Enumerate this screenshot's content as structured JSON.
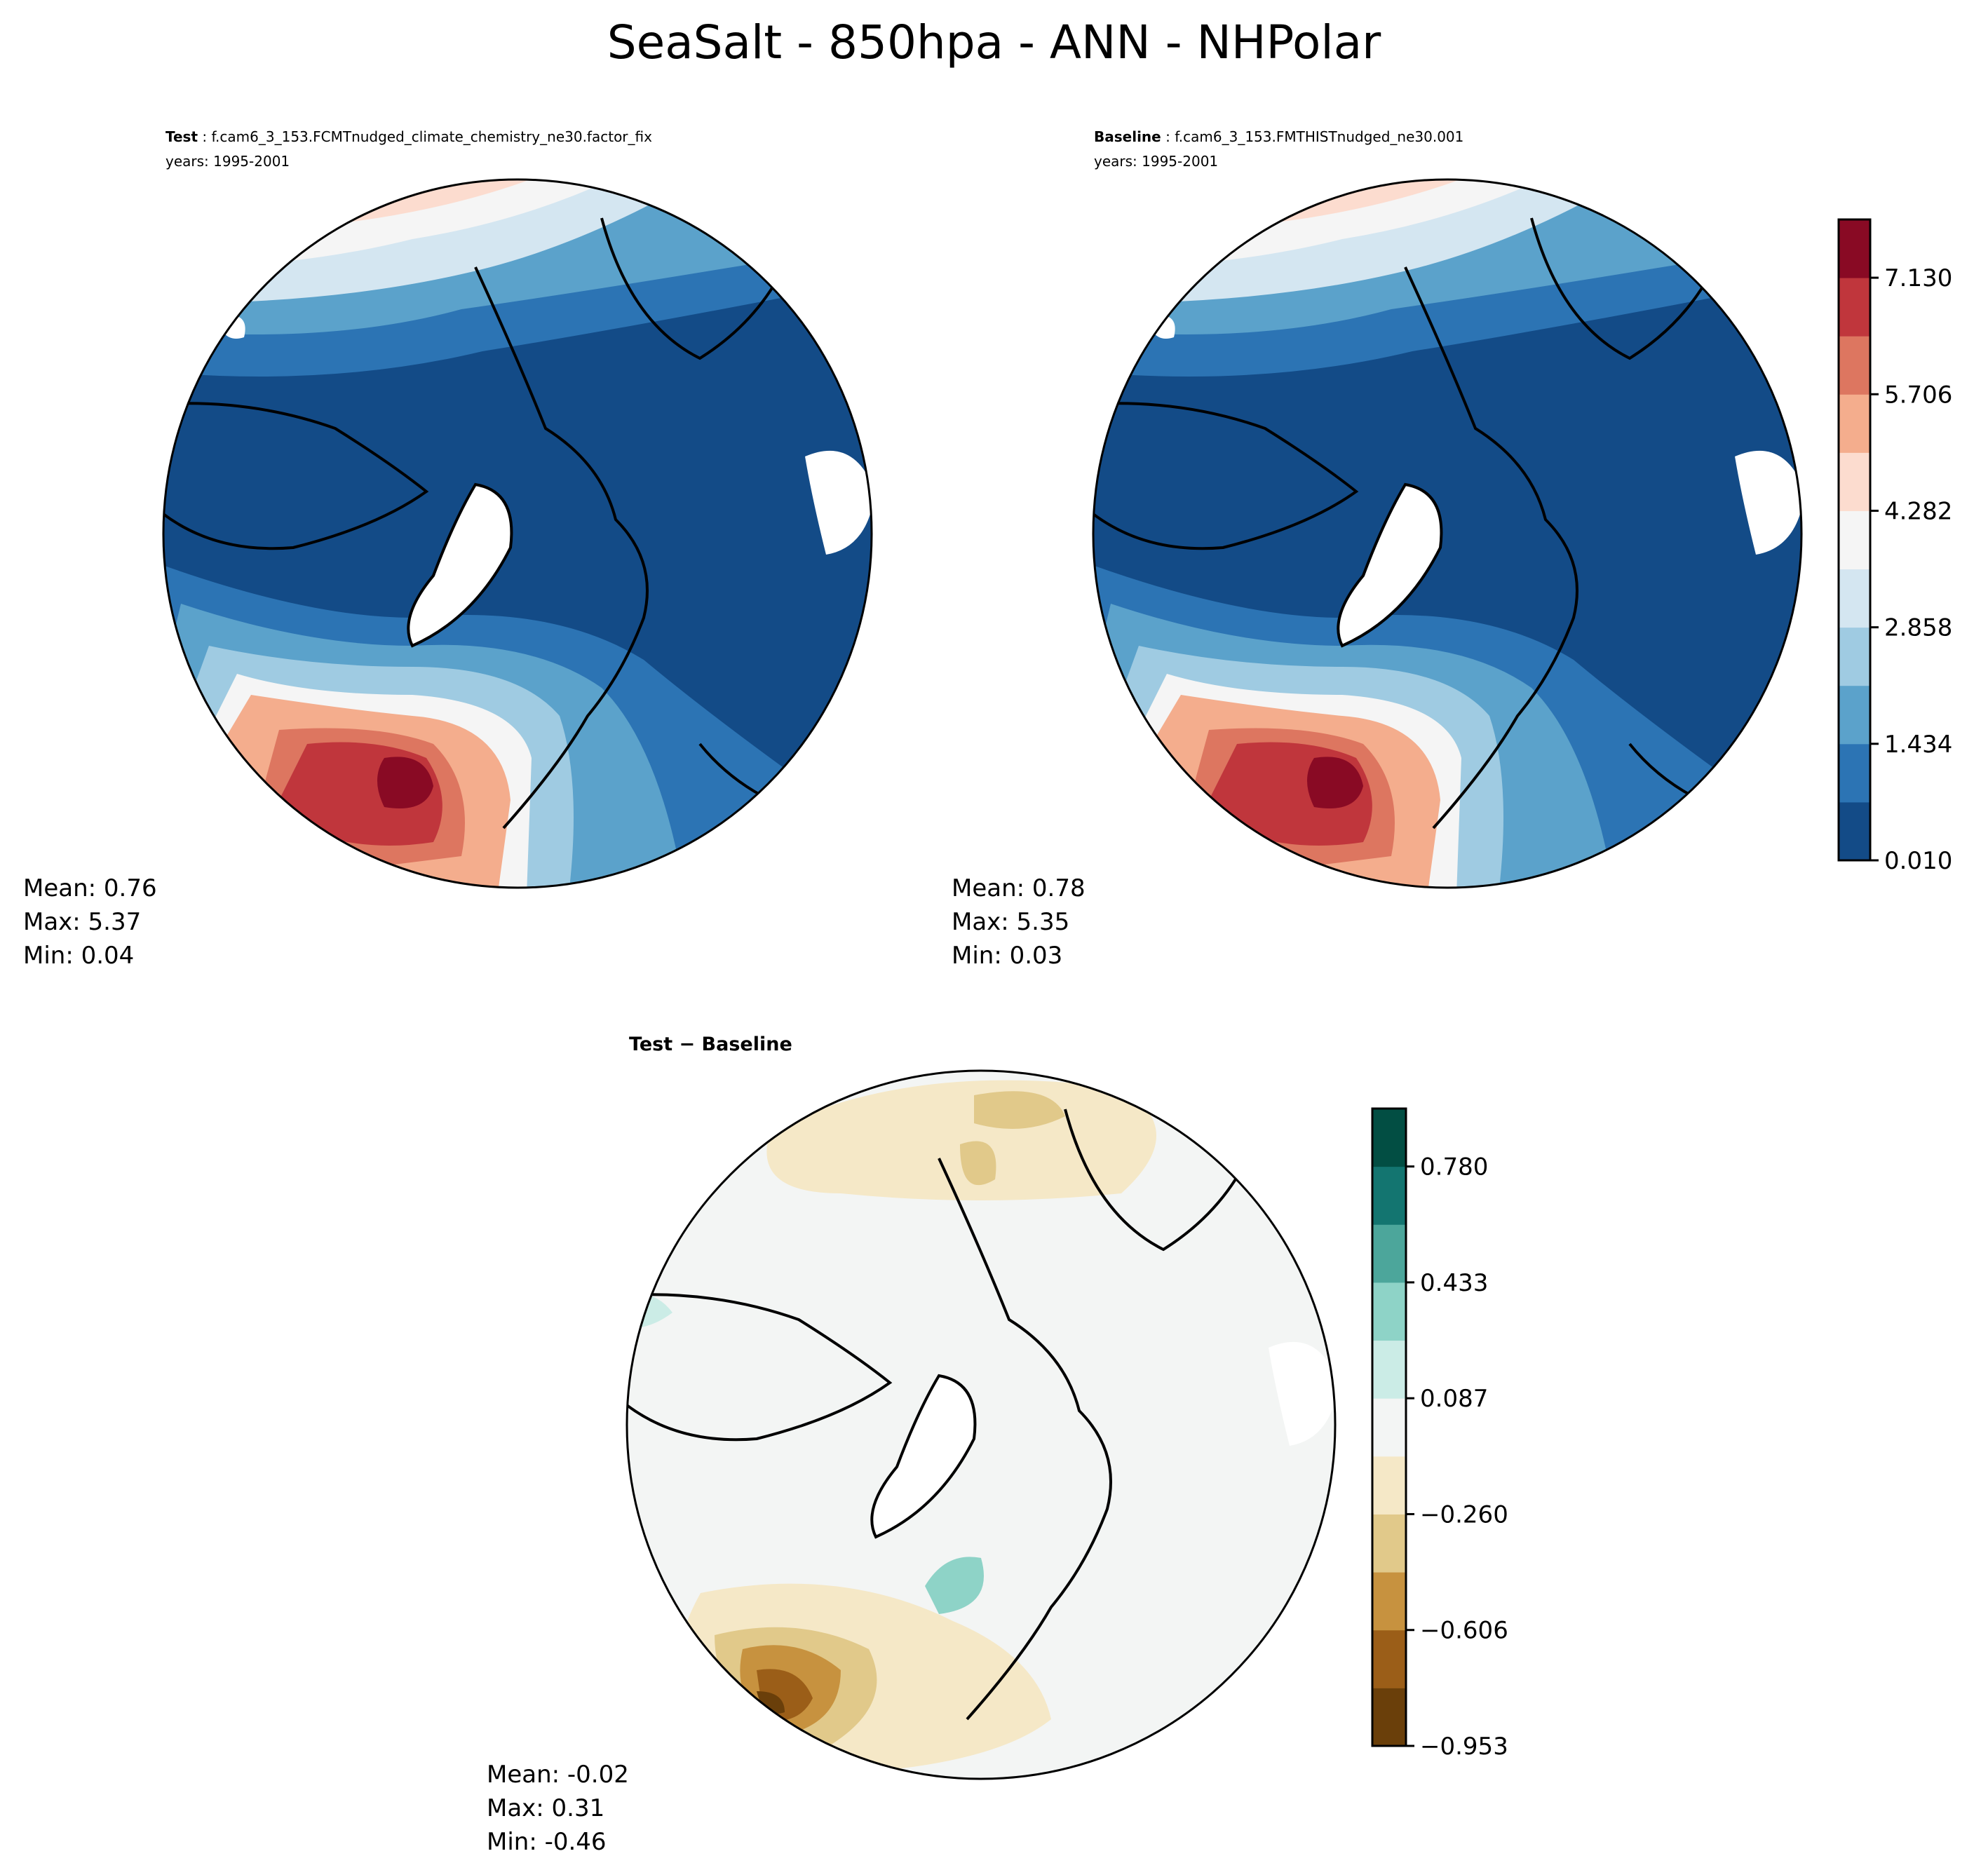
{
  "title": "SeaSalt - 850hpa - ANN - NHPolar",
  "chart_data": [
    {
      "type": "heatmap",
      "projection": "north-polar-stereographic",
      "panel": "test",
      "label": "Test",
      "case": "f.cam6_3_153.FCMTnudged_climate_chemistry_ne30.factor_fix",
      "years": "years: 1995-2001",
      "stats": {
        "mean": "Mean:  0.76",
        "max": "Max:  5.37",
        "min": "Min:  0.04"
      }
    },
    {
      "type": "heatmap",
      "projection": "north-polar-stereographic",
      "panel": "baseline",
      "label": "Baseline",
      "case": "f.cam6_3_153.FMTHISTnudged_ne30.001",
      "years": "years: 1995-2001",
      "stats": {
        "mean": "Mean:  0.78",
        "max": "Max:  5.35",
        "min": "Min:  0.03"
      },
      "colorbar": {
        "ticks": [
          "0.010",
          "1.434",
          "2.858",
          "4.282",
          "5.706",
          "7.130"
        ],
        "colors": [
          "#134b87",
          "#2c74b4",
          "#5ba2cb",
          "#9fcbe2",
          "#d4e6f1",
          "#f5f5f5",
          "#fcdccf",
          "#f4ad8d",
          "#dd7660",
          "#c0363c",
          "#890a24"
        ]
      }
    },
    {
      "type": "heatmap",
      "projection": "north-polar-stereographic",
      "panel": "difference",
      "label": "Test − Baseline",
      "stats": {
        "mean": "Mean: -0.02",
        "max": "Max:  0.31",
        "min": "Min: -0.46"
      },
      "colorbar": {
        "ticks": [
          "−0.953",
          "−0.606",
          "−0.260",
          "0.087",
          "0.433",
          "0.780"
        ],
        "colors": [
          "#6a3f0a",
          "#9b5e18",
          "#c7923f",
          "#e1c98a",
          "#f5e8c7",
          "#f3f5f4",
          "#cbece6",
          "#8ed3c7",
          "#4ca69b",
          "#137570",
          "#024e43"
        ]
      }
    }
  ]
}
